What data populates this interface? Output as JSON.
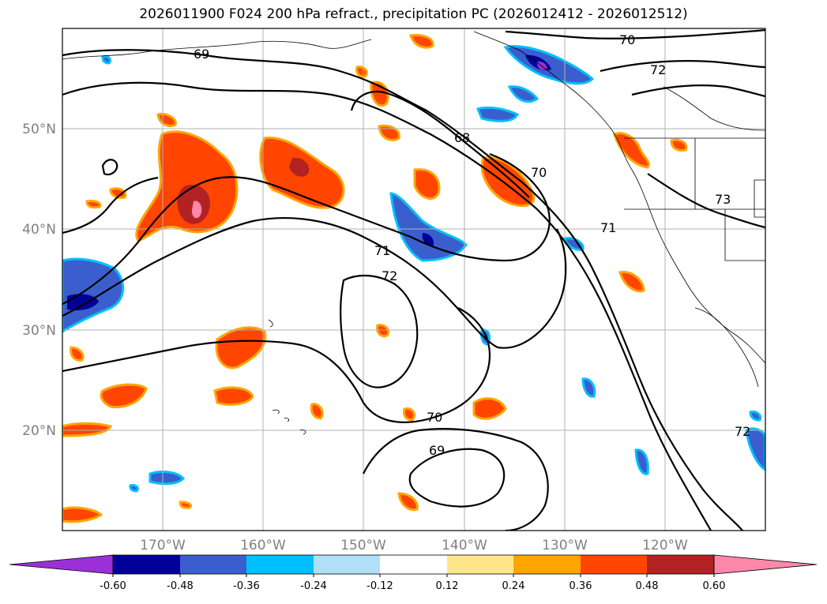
{
  "title": "2026011900 F024 200 hPa refract., precipitation PC (2026012412 - 2026012512)",
  "map": {
    "lon_range": [
      -180,
      -110
    ],
    "lat_range": [
      10,
      60
    ],
    "lat_ticks": [
      {
        "value": 50,
        "label": "50°N"
      },
      {
        "value": 40,
        "label": "40°N"
      },
      {
        "value": 30,
        "label": "30°N"
      },
      {
        "value": 20,
        "label": "20°N"
      }
    ],
    "lon_ticks": [
      {
        "value": -170,
        "label": "170°W"
      },
      {
        "value": -160,
        "label": "160°W"
      },
      {
        "value": -150,
        "label": "150°W"
      },
      {
        "value": -140,
        "label": "140°W"
      },
      {
        "value": -130,
        "label": "130°W"
      },
      {
        "value": -120,
        "label": "120°W"
      }
    ],
    "grid": true,
    "contour_labels": [
      "69",
      "70",
      "72",
      "68",
      "71",
      "72",
      "70",
      "69",
      "73",
      "71",
      "72",
      "70"
    ]
  },
  "colorbar": {
    "ticks": [
      "-0.60",
      "-0.48",
      "-0.36",
      "-0.24",
      "-0.12",
      "0.12",
      "0.24",
      "0.36",
      "0.48",
      "0.60"
    ],
    "colors": [
      "#9b30d9",
      "#000099",
      "#3a5fcd",
      "#00bfff",
      "#b0e0f8",
      "#ffffff",
      "#fde68a",
      "#ffa500",
      "#ff4500",
      "#b22222",
      "#ff88aa"
    ]
  }
}
